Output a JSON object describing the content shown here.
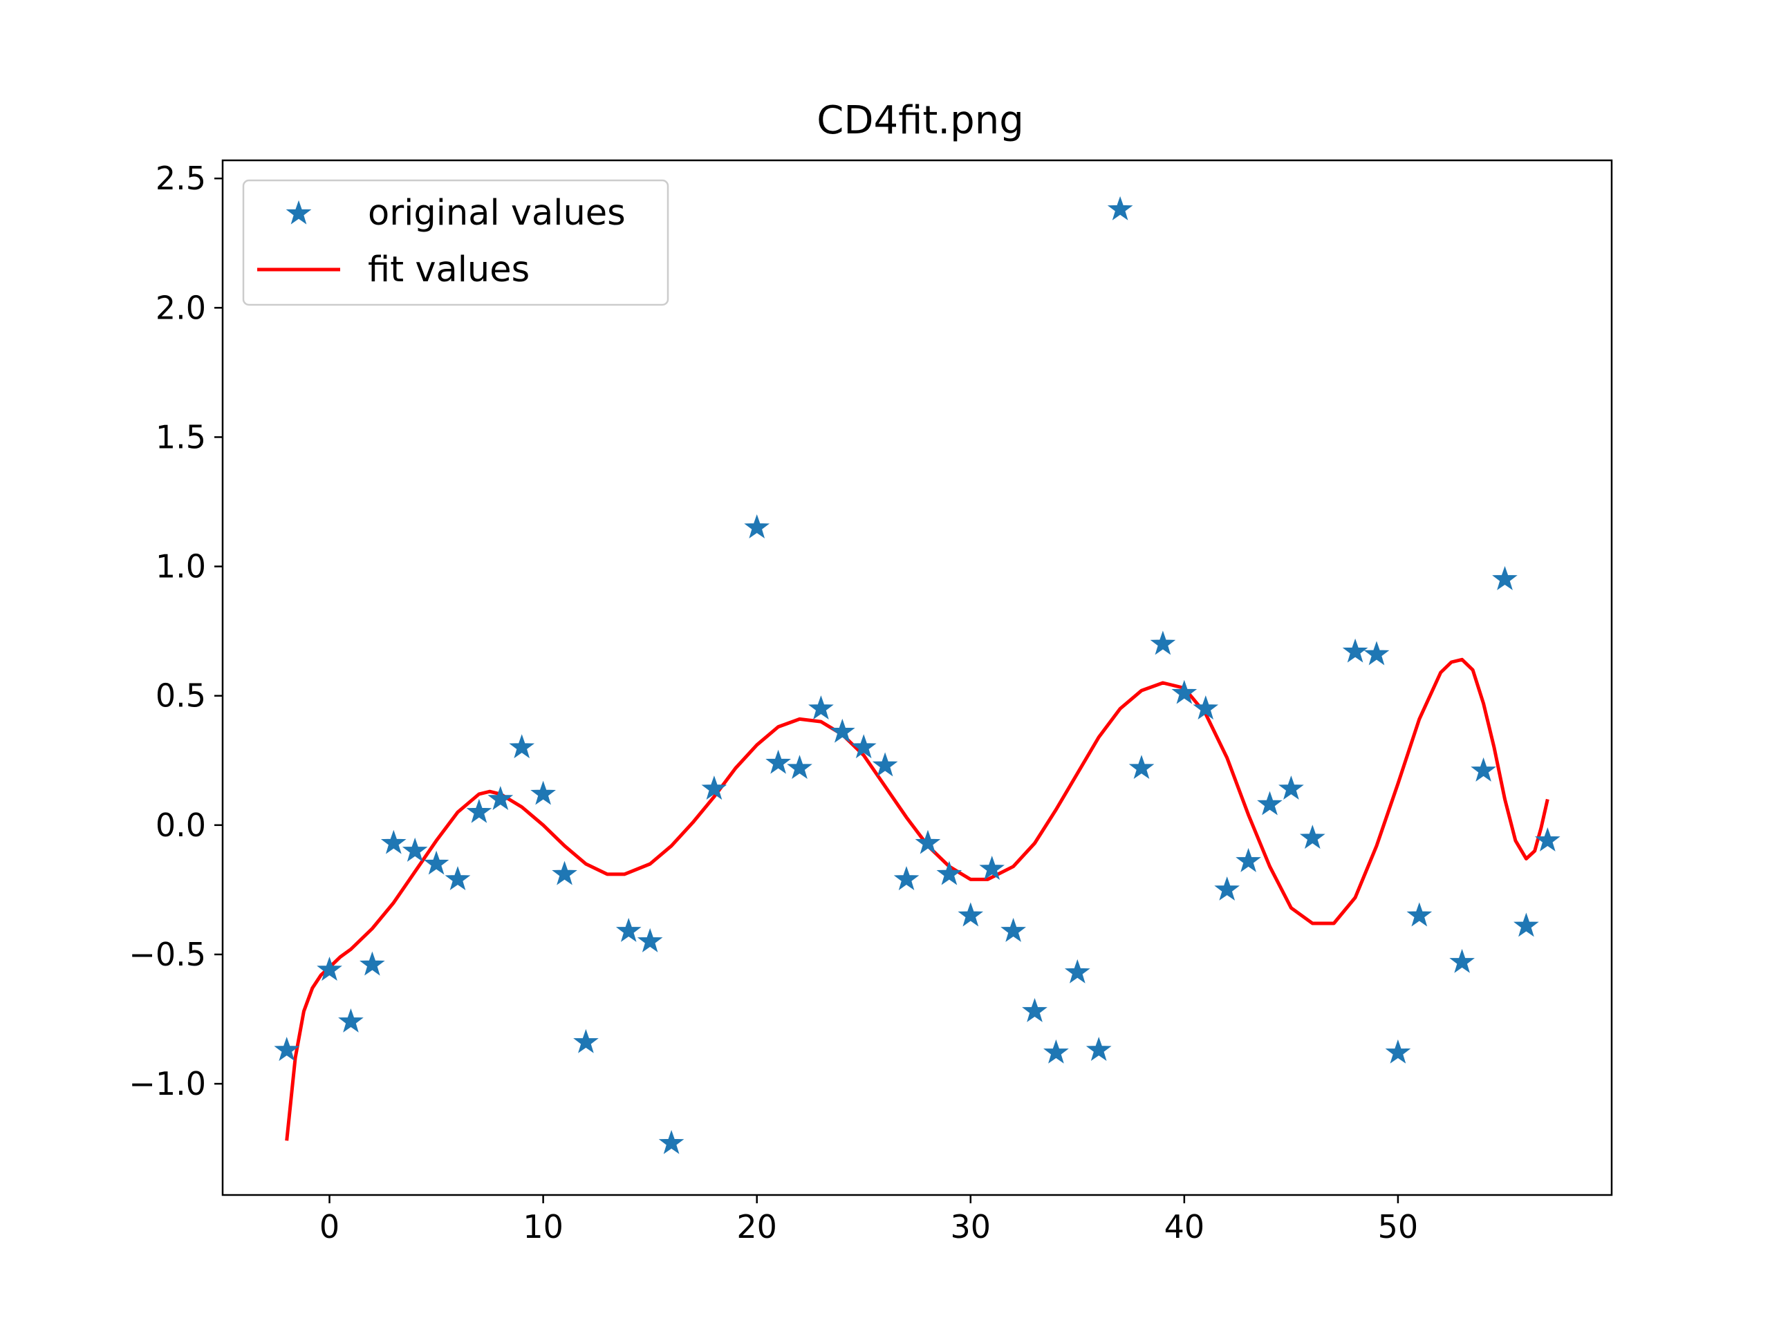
{
  "chart_data": {
    "type": "scatter",
    "title": "CD4fit.png",
    "xlabel": "",
    "ylabel": "",
    "xlim": [
      -5,
      60
    ],
    "ylim": [
      -1.43,
      2.57
    ],
    "x_ticks": [
      0,
      10,
      20,
      30,
      40,
      50
    ],
    "y_ticks": [
      -1.0,
      -0.5,
      0.0,
      0.5,
      1.0,
      1.5,
      2.0,
      2.5
    ],
    "x_tick_labels": [
      "0",
      "10",
      "20",
      "30",
      "40",
      "50"
    ],
    "y_tick_labels": [
      "−1.0",
      "−0.5",
      "0.0",
      "0.5",
      "1.0",
      "1.5",
      "2.0",
      "2.5"
    ],
    "grid": false,
    "legend_position": "upper-left",
    "series": [
      {
        "name": "original values",
        "kind": "scatter",
        "marker": "star",
        "color": "#1f77b4",
        "points": [
          [
            -2,
            -0.87
          ],
          [
            0,
            -0.56
          ],
          [
            1,
            -0.76
          ],
          [
            2,
            -0.54
          ],
          [
            3,
            -0.07
          ],
          [
            4,
            -0.1
          ],
          [
            5,
            -0.15
          ],
          [
            6,
            -0.21
          ],
          [
            7,
            0.05
          ],
          [
            8,
            0.1
          ],
          [
            9,
            0.3
          ],
          [
            10,
            0.12
          ],
          [
            11,
            -0.19
          ],
          [
            12,
            -0.84
          ],
          [
            14,
            -0.41
          ],
          [
            15,
            -0.45
          ],
          [
            16,
            -1.23
          ],
          [
            18,
            0.14
          ],
          [
            20,
            1.15
          ],
          [
            21,
            0.24
          ],
          [
            22,
            0.22
          ],
          [
            23,
            0.45
          ],
          [
            24,
            0.36
          ],
          [
            25,
            0.3
          ],
          [
            26,
            0.23
          ],
          [
            27,
            -0.21
          ],
          [
            28,
            -0.07
          ],
          [
            29,
            -0.19
          ],
          [
            30,
            -0.35
          ],
          [
            31,
            -0.17
          ],
          [
            32,
            -0.41
          ],
          [
            33,
            -0.72
          ],
          [
            34,
            -0.88
          ],
          [
            35,
            -0.57
          ],
          [
            36,
            -0.87
          ],
          [
            37,
            2.38
          ],
          [
            38,
            0.22
          ],
          [
            39,
            0.7
          ],
          [
            40,
            0.51
          ],
          [
            41,
            0.45
          ],
          [
            42,
            -0.25
          ],
          [
            43,
            -0.14
          ],
          [
            44,
            0.08
          ],
          [
            45,
            0.14
          ],
          [
            46,
            -0.05
          ],
          [
            48,
            0.67
          ],
          [
            49,
            0.66
          ],
          [
            50,
            -0.88
          ],
          [
            51,
            -0.35
          ],
          [
            53,
            -0.53
          ],
          [
            54,
            0.21
          ],
          [
            55,
            0.95
          ],
          [
            56,
            -0.39
          ],
          [
            57,
            -0.06
          ]
        ]
      },
      {
        "name": "fit values",
        "kind": "line",
        "color": "#ff0000",
        "points": [
          [
            -2,
            -1.22
          ],
          [
            -1.6,
            -0.9
          ],
          [
            -1.2,
            -0.72
          ],
          [
            -0.8,
            -0.63
          ],
          [
            -0.4,
            -0.58
          ],
          [
            0,
            -0.55
          ],
          [
            0.5,
            -0.51
          ],
          [
            1,
            -0.48
          ],
          [
            2,
            -0.4
          ],
          [
            3,
            -0.3
          ],
          [
            4,
            -0.18
          ],
          [
            5,
            -0.06
          ],
          [
            6,
            0.05
          ],
          [
            7,
            0.12
          ],
          [
            7.5,
            0.13
          ],
          [
            8,
            0.12
          ],
          [
            9,
            0.07
          ],
          [
            10,
            0.0
          ],
          [
            11,
            -0.08
          ],
          [
            12,
            -0.15
          ],
          [
            13,
            -0.19
          ],
          [
            13.8,
            -0.19
          ],
          [
            15,
            -0.15
          ],
          [
            16,
            -0.08
          ],
          [
            17,
            0.01
          ],
          [
            18,
            0.11
          ],
          [
            19,
            0.22
          ],
          [
            20,
            0.31
          ],
          [
            21,
            0.38
          ],
          [
            22,
            0.41
          ],
          [
            23,
            0.4
          ],
          [
            24,
            0.35
          ],
          [
            25,
            0.27
          ],
          [
            26,
            0.15
          ],
          [
            27,
            0.03
          ],
          [
            28,
            -0.08
          ],
          [
            29,
            -0.16
          ],
          [
            30,
            -0.21
          ],
          [
            30.8,
            -0.21
          ],
          [
            32,
            -0.16
          ],
          [
            33,
            -0.07
          ],
          [
            34,
            0.06
          ],
          [
            35,
            0.2
          ],
          [
            36,
            0.34
          ],
          [
            37,
            0.45
          ],
          [
            38,
            0.52
          ],
          [
            39,
            0.55
          ],
          [
            40,
            0.53
          ],
          [
            41,
            0.43
          ],
          [
            42,
            0.26
          ],
          [
            43,
            0.04
          ],
          [
            44,
            -0.16
          ],
          [
            45,
            -0.32
          ],
          [
            46,
            -0.38
          ],
          [
            47,
            -0.38
          ],
          [
            48,
            -0.28
          ],
          [
            49,
            -0.08
          ],
          [
            50,
            0.16
          ],
          [
            51,
            0.41
          ],
          [
            52,
            0.59
          ],
          [
            52.5,
            0.63
          ],
          [
            53,
            0.64
          ],
          [
            53.5,
            0.6
          ],
          [
            54,
            0.47
          ],
          [
            54.5,
            0.3
          ],
          [
            55,
            0.1
          ],
          [
            55.5,
            -0.06
          ],
          [
            56,
            -0.13
          ],
          [
            56.4,
            -0.1
          ],
          [
            56.7,
            -0.01
          ],
          [
            57,
            0.1
          ]
        ]
      }
    ]
  }
}
